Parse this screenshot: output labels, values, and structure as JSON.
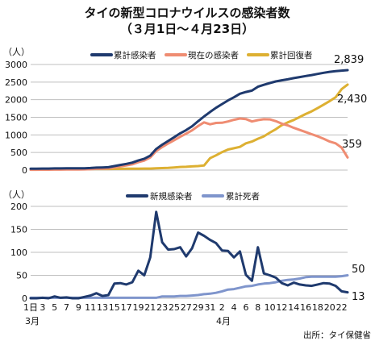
{
  "title": {
    "line1": "タイの新型コロナウイルスの感染者数",
    "line2": "（３月1日～４月23日）"
  },
  "source": "出所：タイ保健省",
  "colors": {
    "navy": "#1f3a6e",
    "salmon": "#ef8c72",
    "gold": "#ddb032",
    "lightblue": "#7f95cc",
    "grid": "#bfbfbf"
  },
  "chart_data": [
    {
      "type": "line",
      "unit_label": "（人）",
      "y_ticks": [
        "0",
        "500",
        "1000",
        "1500",
        "2000",
        "2500",
        "3000"
      ],
      "ylim": [
        0,
        3000
      ],
      "x": [
        "3/1",
        "3/2",
        "3/3",
        "3/4",
        "3/5",
        "3/6",
        "3/7",
        "3/8",
        "3/9",
        "3/10",
        "3/11",
        "3/12",
        "3/13",
        "3/14",
        "3/15",
        "3/16",
        "3/17",
        "3/18",
        "3/19",
        "3/20",
        "3/21",
        "3/22",
        "3/23",
        "3/24",
        "3/25",
        "3/26",
        "3/27",
        "3/28",
        "3/29",
        "3/30",
        "3/31",
        "4/1",
        "4/2",
        "4/3",
        "4/4",
        "4/5",
        "4/6",
        "4/7",
        "4/8",
        "4/9",
        "4/10",
        "4/11",
        "4/12",
        "4/13",
        "4/14",
        "4/15",
        "4/16",
        "4/17",
        "4/18",
        "4/19",
        "4/20",
        "4/21",
        "4/22",
        "4/23"
      ],
      "series": [
        {
          "name": "累計感染者",
          "color": "#1f3a6e",
          "end_label": "2,839",
          "values": [
            42,
            42,
            43,
            43,
            47,
            48,
            50,
            50,
            50,
            53,
            59,
            70,
            75,
            82,
            114,
            147,
            177,
            212,
            272,
            322,
            411,
            599,
            721,
            827,
            934,
            1045,
            1136,
            1245,
            1388,
            1524,
            1651,
            1771,
            1875,
            1978,
            2067,
            2169,
            2220,
            2258,
            2369,
            2423,
            2473,
            2518,
            2551,
            2579,
            2613,
            2643,
            2672,
            2700,
            2733,
            2765,
            2792,
            2811,
            2826,
            2839
          ]
        },
        {
          "name": "現在の感染者",
          "color": "#ef8c72",
          "end_label": "359",
          "values": [
            10,
            10,
            11,
            11,
            13,
            14,
            16,
            16,
            16,
            20,
            25,
            36,
            40,
            47,
            75,
            105,
            135,
            165,
            225,
            270,
            360,
            540,
            655,
            755,
            850,
            945,
            1035,
            1130,
            1250,
            1355,
            1300,
            1340,
            1345,
            1380,
            1430,
            1465,
            1450,
            1380,
            1420,
            1445,
            1440,
            1390,
            1320,
            1270,
            1200,
            1140,
            1080,
            1020,
            960,
            890,
            810,
            760,
            640,
            359
          ]
        },
        {
          "name": "累計回復者",
          "color": "#ddb032",
          "end_label": "2,430",
          "values": [
            30,
            30,
            30,
            30,
            31,
            31,
            31,
            31,
            31,
            31,
            31,
            31,
            33,
            33,
            35,
            37,
            39,
            42,
            42,
            44,
            44,
            53,
            58,
            64,
            76,
            90,
            95,
            106,
            115,
            130,
            340,
            420,
            510,
            585,
            620,
            660,
            760,
            810,
            890,
            960,
            1065,
            1160,
            1275,
            1355,
            1425,
            1510,
            1595,
            1670,
            1760,
            1860,
            1960,
            2070,
            2300,
            2430
          ]
        }
      ]
    },
    {
      "type": "line",
      "unit_label": "（人）",
      "y_ticks": [
        "0",
        "50",
        "100",
        "150",
        "200"
      ],
      "ylim": [
        0,
        200
      ],
      "x_tick_labels": [
        "1日",
        "3",
        "5",
        "7",
        "9",
        "11",
        "13",
        "15",
        "17",
        "19",
        "21",
        "23",
        "25",
        "27",
        "29",
        "31",
        "2",
        "4",
        "6",
        "8",
        "10",
        "12",
        "14",
        "16",
        "18",
        "20",
        "22"
      ],
      "x_month_labels": [
        "3月",
        "4月"
      ],
      "series": [
        {
          "name": "新規感染者",
          "color": "#1f3a6e",
          "end_label": "13",
          "values": [
            0,
            0,
            1,
            0,
            4,
            1,
            2,
            0,
            0,
            3,
            6,
            11,
            5,
            7,
            32,
            33,
            30,
            35,
            60,
            50,
            89,
            188,
            122,
            106,
            107,
            111,
            91,
            109,
            143,
            136,
            127,
            120,
            104,
            103,
            89,
            102,
            51,
            38,
            111,
            54,
            50,
            45,
            33,
            28,
            34,
            30,
            28,
            27,
            30,
            33,
            32,
            27,
            15,
            13
          ]
        },
        {
          "name": "累計死者",
          "color": "#7f95cc",
          "end_label": "50",
          "values": [
            1,
            1,
            1,
            1,
            1,
            1,
            1,
            1,
            1,
            1,
            1,
            1,
            1,
            1,
            1,
            1,
            1,
            1,
            1,
            1,
            1,
            1,
            4,
            4,
            4,
            5,
            5,
            6,
            7,
            9,
            10,
            12,
            15,
            19,
            20,
            23,
            26,
            27,
            30,
            32,
            33,
            35,
            38,
            40,
            41,
            43,
            46,
            47,
            47,
            47,
            47,
            47,
            48,
            50
          ]
        }
      ]
    }
  ]
}
